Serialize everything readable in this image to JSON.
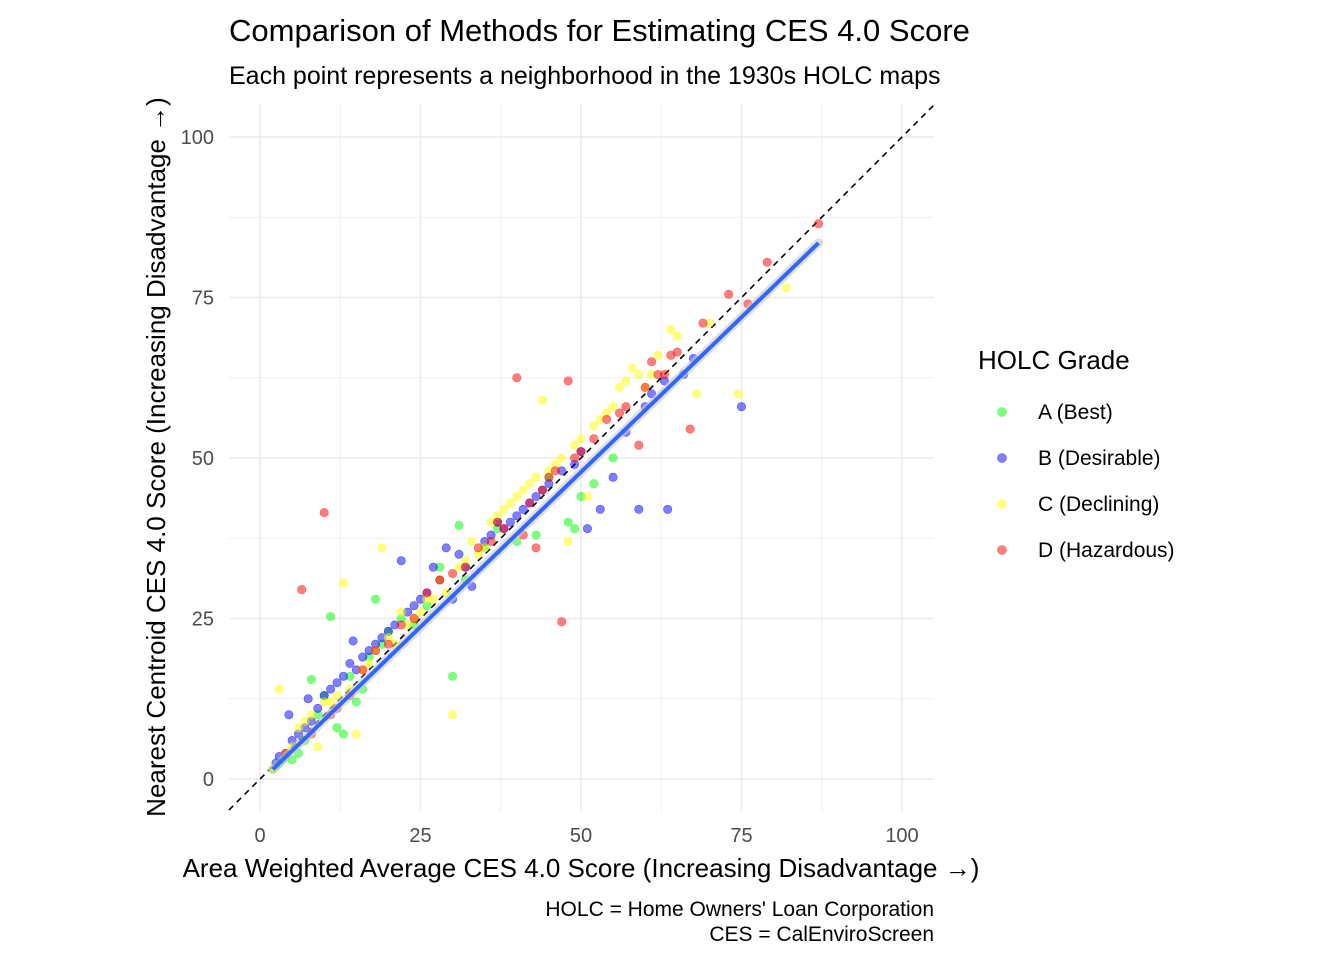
{
  "chart_data": {
    "type": "scatter",
    "title": "Comparison of Methods for Estimating CES 4.0 Score",
    "subtitle": "Each point represents a neighborhood in the 1930s HOLC maps",
    "xlabel": "Area Weighted Average CES 4.0 Score (Increasing Disadvantage →)",
    "ylabel": "Nearest Centroid CES 4.0 Score (Increasing Disadvantage →)",
    "caption_lines": [
      "HOLC = Home Owners' Loan Corporation",
      "CES = CalEnviroScreen"
    ],
    "xlim": [
      0,
      100
    ],
    "ylim": [
      0,
      100
    ],
    "x_ticks": [
      "0",
      "25",
      "50",
      "75",
      "100"
    ],
    "y_ticks": [
      "0",
      "25",
      "50",
      "75",
      "100"
    ],
    "grid": true,
    "legend": {
      "title": "HOLC Grade",
      "placement": "right",
      "entries": [
        {
          "label": "A (Best)",
          "color": "#00ff00"
        },
        {
          "label": "B (Desirable)",
          "color": "#0000ff"
        },
        {
          "label": "C (Declining)",
          "color": "#ffff00"
        },
        {
          "label": "D (Hazardous)",
          "color": "#ff0000"
        }
      ]
    },
    "reference_line": {
      "style": "dashed",
      "slope": 1,
      "intercept": 0,
      "color": "#000000"
    },
    "fit_line": {
      "style": "smooth",
      "color": "#3366ff",
      "x": [
        2,
        87
      ],
      "y": [
        1.5,
        83.5
      ]
    },
    "series": [
      {
        "name": "A (Best)",
        "color": "#00ff00",
        "points": [
          [
            2,
            1.5
          ],
          [
            2.5,
            2
          ],
          [
            3,
            2.5
          ],
          [
            3.5,
            3
          ],
          [
            4,
            3.5
          ],
          [
            5,
            3
          ],
          [
            6,
            4
          ],
          [
            7,
            6
          ],
          [
            8,
            15.5
          ],
          [
            9,
            10
          ],
          [
            10,
            13
          ],
          [
            11,
            25.3
          ],
          [
            12,
            8
          ],
          [
            13,
            7
          ],
          [
            14,
            16
          ],
          [
            15,
            12
          ],
          [
            16,
            14
          ],
          [
            17,
            19
          ],
          [
            18,
            28
          ],
          [
            19,
            21
          ],
          [
            20,
            23
          ],
          [
            22,
            25
          ],
          [
            24,
            24
          ],
          [
            26,
            27
          ],
          [
            28,
            33
          ],
          [
            30,
            16
          ],
          [
            31,
            39.5
          ],
          [
            32,
            31
          ],
          [
            35,
            36
          ],
          [
            37,
            39
          ],
          [
            40,
            37
          ],
          [
            43,
            38
          ],
          [
            45,
            47
          ],
          [
            48,
            40
          ],
          [
            49,
            39
          ],
          [
            50,
            44
          ],
          [
            52,
            46
          ],
          [
            55,
            50
          ]
        ]
      },
      {
        "name": "B (Desirable)",
        "color": "#0000ff",
        "points": [
          [
            2.5,
            2.5
          ],
          [
            3,
            3.5
          ],
          [
            4,
            4
          ],
          [
            4.5,
            10
          ],
          [
            5,
            6
          ],
          [
            6,
            7
          ],
          [
            7,
            8
          ],
          [
            7.5,
            12.5
          ],
          [
            8,
            9
          ],
          [
            9,
            11
          ],
          [
            10,
            13
          ],
          [
            11,
            14
          ],
          [
            12,
            15
          ],
          [
            13,
            16
          ],
          [
            14,
            18
          ],
          [
            14.5,
            21.5
          ],
          [
            15,
            17
          ],
          [
            16,
            19
          ],
          [
            17,
            20
          ],
          [
            18,
            21
          ],
          [
            19,
            22
          ],
          [
            20,
            23
          ],
          [
            21,
            24
          ],
          [
            22,
            34
          ],
          [
            23,
            26
          ],
          [
            24,
            27
          ],
          [
            25,
            28
          ],
          [
            26,
            29
          ],
          [
            27,
            33
          ],
          [
            28,
            31
          ],
          [
            29,
            36
          ],
          [
            30,
            28
          ],
          [
            31,
            35
          ],
          [
            32,
            33
          ],
          [
            33,
            30
          ],
          [
            35,
            37
          ],
          [
            36,
            38
          ],
          [
            37,
            40
          ],
          [
            38,
            39
          ],
          [
            39,
            40
          ],
          [
            40,
            41
          ],
          [
            41,
            42
          ],
          [
            42,
            43
          ],
          [
            43,
            44
          ],
          [
            44,
            45
          ],
          [
            45,
            46
          ],
          [
            47,
            48
          ],
          [
            49,
            49
          ],
          [
            50,
            51
          ],
          [
            51,
            39
          ],
          [
            53,
            42
          ],
          [
            55,
            47
          ],
          [
            57,
            54
          ],
          [
            59,
            42
          ],
          [
            60,
            58
          ],
          [
            61,
            60
          ],
          [
            63,
            62
          ],
          [
            63.5,
            42
          ],
          [
            66,
            63
          ],
          [
            67.5,
            65.5
          ],
          [
            75,
            58
          ]
        ]
      },
      {
        "name": "C (Declining)",
        "color": "#ffff00",
        "points": [
          [
            2,
            1.5
          ],
          [
            3,
            14
          ],
          [
            4,
            4
          ],
          [
            5,
            5
          ],
          [
            6,
            8
          ],
          [
            7,
            9
          ],
          [
            8,
            10
          ],
          [
            9,
            5
          ],
          [
            10,
            12
          ],
          [
            11,
            12
          ],
          [
            12,
            13
          ],
          [
            13,
            30.5
          ],
          [
            14,
            14
          ],
          [
            15,
            7
          ],
          [
            16,
            17
          ],
          [
            17,
            18
          ],
          [
            18,
            20
          ],
          [
            19,
            36
          ],
          [
            20,
            22
          ],
          [
            21,
            21
          ],
          [
            22,
            26
          ],
          [
            23,
            24
          ],
          [
            24,
            25
          ],
          [
            25,
            26
          ],
          [
            26,
            28
          ],
          [
            27,
            28
          ],
          [
            28,
            31
          ],
          [
            29,
            29
          ],
          [
            30,
            10
          ],
          [
            31,
            33
          ],
          [
            32,
            34
          ],
          [
            33,
            37
          ],
          [
            34,
            35
          ],
          [
            35,
            36
          ],
          [
            36,
            40
          ],
          [
            37,
            41
          ],
          [
            38,
            42
          ],
          [
            39,
            43
          ],
          [
            40,
            44
          ],
          [
            41,
            45
          ],
          [
            42,
            46
          ],
          [
            43,
            47
          ],
          [
            44,
            59
          ],
          [
            45,
            48
          ],
          [
            46,
            49
          ],
          [
            47,
            50
          ],
          [
            48,
            37
          ],
          [
            49,
            52
          ],
          [
            50,
            53
          ],
          [
            51,
            44
          ],
          [
            52,
            55
          ],
          [
            53,
            56
          ],
          [
            54,
            57
          ],
          [
            55,
            58
          ],
          [
            56,
            61
          ],
          [
            57,
            62
          ],
          [
            58,
            64
          ],
          [
            59,
            63
          ],
          [
            60,
            61
          ],
          [
            61,
            63
          ],
          [
            62,
            66
          ],
          [
            64,
            70
          ],
          [
            65,
            69
          ],
          [
            68,
            60
          ],
          [
            70,
            71
          ],
          [
            74.5,
            60
          ],
          [
            82,
            76.5
          ]
        ]
      },
      {
        "name": "D (Hazardous)",
        "color": "#ff0000",
        "points": [
          [
            4,
            4
          ],
          [
            6.5,
            29.5
          ],
          [
            8,
            7
          ],
          [
            10,
            41.5
          ],
          [
            11,
            10
          ],
          [
            12,
            11
          ],
          [
            14,
            13
          ],
          [
            16,
            17
          ],
          [
            18,
            20
          ],
          [
            20,
            21
          ],
          [
            22,
            24
          ],
          [
            24,
            25
          ],
          [
            26,
            29
          ],
          [
            28,
            31
          ],
          [
            30,
            32
          ],
          [
            32,
            33
          ],
          [
            34,
            36
          ],
          [
            36,
            37
          ],
          [
            37,
            40
          ],
          [
            38,
            39
          ],
          [
            40,
            62.5
          ],
          [
            41,
            38
          ],
          [
            42,
            43
          ],
          [
            43,
            36
          ],
          [
            44,
            45
          ],
          [
            45,
            47
          ],
          [
            46,
            48
          ],
          [
            47,
            24.5
          ],
          [
            48,
            62
          ],
          [
            49,
            50
          ],
          [
            50,
            51
          ],
          [
            52,
            53
          ],
          [
            54,
            56
          ],
          [
            56,
            57
          ],
          [
            57,
            58
          ],
          [
            59,
            52
          ],
          [
            60,
            61
          ],
          [
            61,
            65
          ],
          [
            62,
            63
          ],
          [
            63,
            63
          ],
          [
            64,
            66
          ],
          [
            65,
            66.5
          ],
          [
            67,
            54.5
          ],
          [
            69,
            71
          ],
          [
            73,
            75.5
          ],
          [
            76,
            74
          ],
          [
            79,
            80.5
          ],
          [
            87,
            86.5
          ]
        ]
      }
    ]
  }
}
